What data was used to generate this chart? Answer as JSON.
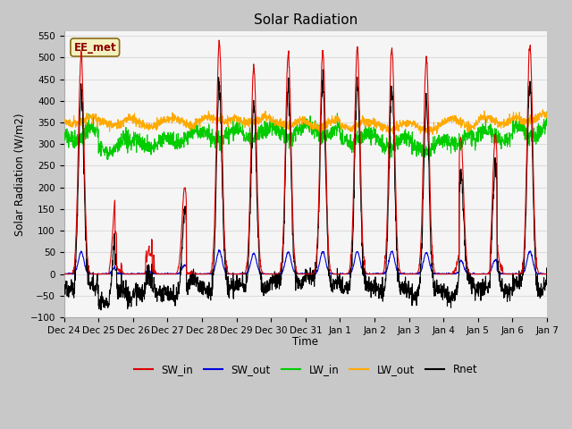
{
  "title": "Solar Radiation",
  "ylabel": "Solar Radiation (W/m2)",
  "xlabel": "Time",
  "station_label": "EE_met",
  "ylim": [
    -100,
    560
  ],
  "yticks": [
    -100,
    -50,
    0,
    50,
    100,
    150,
    200,
    250,
    300,
    350,
    400,
    450,
    500,
    550
  ],
  "x_tick_labels": [
    "Dec 24",
    "Dec 25",
    "Dec 26",
    "Dec 27",
    "Dec 28",
    "Dec 29",
    "Dec 30",
    "Dec 31",
    "Jan 1",
    "Jan 2",
    "Jan 3",
    "Jan 4",
    "Jan 5",
    "Jan 6",
    "Jan 7"
  ],
  "n_days": 14,
  "steps_per_day": 144,
  "colors": {
    "SW_in": "#dd0000",
    "SW_out": "#0000dd",
    "LW_in": "#00cc00",
    "LW_out": "#ffaa00",
    "Rnet": "#000000"
  },
  "fig_bg_color": "#c8c8c8",
  "plot_bg_color": "#f5f5f5",
  "grid_color": "#dddddd",
  "day_peaks_SW": [
    510,
    180,
    145,
    200,
    540,
    480,
    510,
    515,
    520,
    525,
    500,
    315,
    320,
    530
  ],
  "day_cloud_factor": [
    0.02,
    0.55,
    0.65,
    0.45,
    0.02,
    0.08,
    0.02,
    0.02,
    0.02,
    0.02,
    0.08,
    0.35,
    0.35,
    0.02
  ],
  "lw_in_base": [
    320,
    310,
    305,
    315,
    320,
    325,
    330,
    330,
    315,
    305,
    295,
    310,
    320,
    330
  ],
  "lw_out_base": [
    355,
    350,
    348,
    352,
    358,
    355,
    350,
    348,
    345,
    342,
    340,
    350,
    355,
    360
  ]
}
